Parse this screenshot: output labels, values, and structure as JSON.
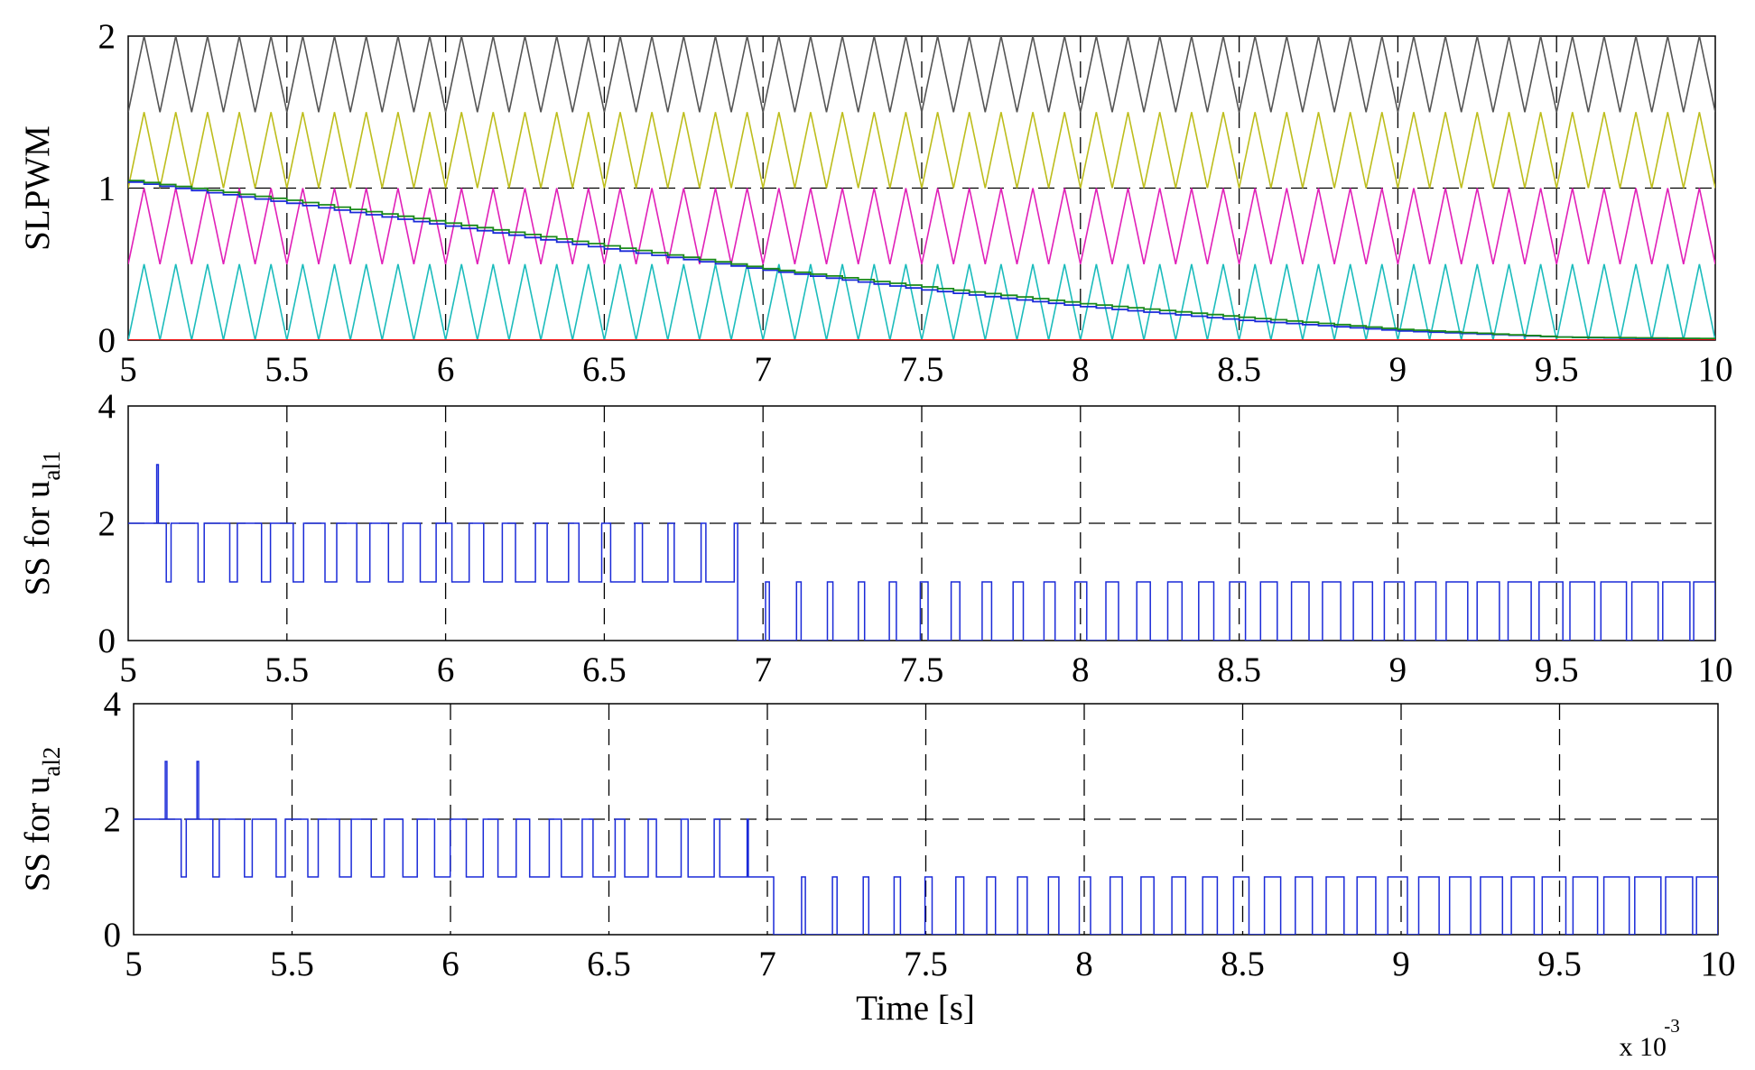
{
  "chart_data": [
    {
      "type": "line",
      "panel": "top",
      "ylabel": "SLPWM",
      "x_range": [
        5,
        10
      ],
      "x_ticks": [
        "5",
        "5.5",
        "6",
        "6.5",
        "7",
        "7.5",
        "8",
        "8.5",
        "9",
        "9.5",
        "10"
      ],
      "y_range": [
        0,
        2
      ],
      "y_ticks": [
        "0",
        "1",
        "2"
      ],
      "grid": "dashed",
      "carriers": [
        {
          "name": "carrier-4",
          "color": "#555555",
          "min": 1.5,
          "max": 2.0,
          "periods_per_ms": 10
        },
        {
          "name": "carrier-3",
          "color": "#bdbd1c",
          "min": 1.0,
          "max": 1.5,
          "periods_per_ms": 10
        },
        {
          "name": "carrier-2",
          "color": "#e020b8",
          "min": 0.5,
          "max": 1.0,
          "periods_per_ms": 10
        },
        {
          "name": "carrier-1",
          "color": "#1cbcbc",
          "min": 0.0,
          "max": 0.5,
          "periods_per_ms": 10
        }
      ],
      "references": [
        {
          "name": "ref-blue",
          "color": "#1a2ad8",
          "x": [
            5,
            5.5,
            6,
            6.5,
            7,
            7.5,
            8,
            8.5,
            9,
            9.5,
            10
          ],
          "y": [
            1.04,
            0.9,
            0.75,
            0.6,
            0.46,
            0.33,
            0.22,
            0.13,
            0.06,
            0.02,
            0.0
          ]
        },
        {
          "name": "ref-green",
          "color": "#1a8a1a",
          "x": [
            5,
            5.5,
            6,
            6.5,
            7,
            7.5,
            8,
            8.5,
            9,
            9.5,
            10
          ],
          "y": [
            1.05,
            0.92,
            0.77,
            0.62,
            0.47,
            0.35,
            0.24,
            0.15,
            0.07,
            0.02,
            0.01
          ]
        },
        {
          "name": "ref-red",
          "color": "#ff0000",
          "x": [
            5,
            10
          ],
          "y": [
            0.0,
            0.0
          ]
        }
      ]
    },
    {
      "type": "line",
      "panel": "middle",
      "ylabel": "SS for u",
      "ylabel_sub": "al1",
      "x_range": [
        5,
        10
      ],
      "x_ticks": [
        "5",
        "5.5",
        "6",
        "6.5",
        "7",
        "7.5",
        "8",
        "8.5",
        "9",
        "9.5",
        "10"
      ],
      "y_range": [
        0,
        4
      ],
      "y_ticks": [
        "0",
        "2",
        "4"
      ],
      "grid": "dashed",
      "series_color": "#1a2ad8",
      "spikes": [
        5.09
      ],
      "switch_start": 6.84
    },
    {
      "type": "line",
      "panel": "bottom",
      "ylabel": "SS for u",
      "ylabel_sub": "al2",
      "x_range": [
        5,
        10
      ],
      "x_ticks": [
        "5",
        "5.5",
        "6",
        "6.5",
        "7",
        "7.5",
        "8",
        "8.5",
        "9",
        "9.5",
        "10"
      ],
      "y_range": [
        0,
        4
      ],
      "y_ticks": [
        "0",
        "2",
        "4"
      ],
      "grid": "dashed",
      "series_color": "#1a2ad8",
      "spikes": [
        5.1,
        5.2
      ],
      "switch_start": 6.94
    }
  ],
  "xlabel": "Time [s]",
  "x_multiplier": "x 10",
  "x_multiplier_exp": "-3"
}
